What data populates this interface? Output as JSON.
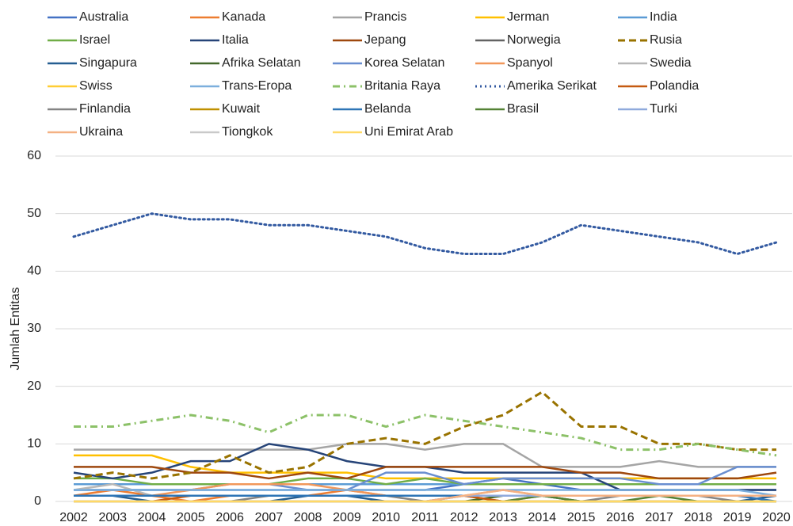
{
  "chart_data": {
    "type": "line",
    "y_label": "Jumlah Entitas",
    "categories": [
      "2002",
      "2003",
      "2004",
      "2005",
      "2006",
      "2007",
      "2008",
      "2009",
      "2010",
      "2011",
      "2012",
      "2013",
      "2014",
      "2015",
      "2016",
      "2017",
      "2018",
      "2019",
      "2020"
    ],
    "ylim": [
      0,
      60
    ],
    "yticks": [
      0,
      10,
      20,
      30,
      40,
      50,
      60
    ],
    "grid": true,
    "series": [
      {
        "name": "Australia",
        "color": "#4472c4",
        "dash": "solid",
        "values": [
          2,
          2,
          2,
          2,
          2,
          2,
          2,
          2,
          2,
          2,
          3,
          4,
          3,
          2,
          2,
          2,
          2,
          2,
          2
        ]
      },
      {
        "name": "Kanada",
        "color": "#ed7d31",
        "dash": "solid",
        "values": [
          1,
          2,
          1,
          0,
          1,
          1,
          1,
          2,
          1,
          1,
          1,
          0,
          1,
          1,
          1,
          1,
          1,
          1,
          1
        ]
      },
      {
        "name": "Prancis",
        "color": "#a5a5a5",
        "dash": "solid",
        "values": [
          9,
          9,
          9,
          9,
          9,
          9,
          9,
          10,
          10,
          9,
          10,
          10,
          6,
          6,
          6,
          7,
          6,
          6,
          6
        ]
      },
      {
        "name": "Jerman",
        "color": "#ffc000",
        "dash": "solid",
        "values": [
          8,
          8,
          8,
          6,
          5,
          5,
          5,
          5,
          4,
          4,
          4,
          4,
          4,
          4,
          4,
          4,
          4,
          4,
          4
        ]
      },
      {
        "name": "India",
        "color": "#5b9bd5",
        "dash": "solid",
        "values": [
          3,
          3,
          3,
          3,
          3,
          3,
          3,
          3,
          3,
          3,
          3,
          3,
          3,
          3,
          3,
          3,
          3,
          3,
          3
        ]
      },
      {
        "name": "Israel",
        "color": "#70ad47",
        "dash": "solid",
        "values": [
          4,
          4,
          3,
          3,
          3,
          3,
          4,
          4,
          3,
          4,
          3,
          3,
          3,
          3,
          3,
          3,
          3,
          3,
          3
        ]
      },
      {
        "name": "Italia",
        "color": "#264478",
        "dash": "solid",
        "values": [
          5,
          4,
          5,
          7,
          7,
          10,
          9,
          7,
          6,
          6,
          5,
          5,
          5,
          5,
          2,
          2,
          2,
          2,
          2
        ]
      },
      {
        "name": "Jepang",
        "color": "#9e480e",
        "dash": "solid",
        "values": [
          6,
          6,
          6,
          5,
          5,
          4,
          5,
          4,
          6,
          6,
          6,
          6,
          6,
          5,
          5,
          4,
          4,
          4,
          5
        ]
      },
      {
        "name": "Norwegia",
        "color": "#636363",
        "dash": "solid",
        "values": [
          1,
          1,
          1,
          1,
          1,
          1,
          1,
          1,
          1,
          1,
          1,
          1,
          1,
          1,
          1,
          1,
          1,
          1,
          1
        ]
      },
      {
        "name": "Rusia",
        "color": "#997300",
        "dash": "dashed",
        "values": [
          4,
          5,
          4,
          5,
          8,
          5,
          6,
          10,
          11,
          10,
          13,
          15,
          19,
          13,
          13,
          10,
          10,
          9,
          9
        ]
      },
      {
        "name": "Singapura",
        "color": "#255e91",
        "dash": "solid",
        "values": [
          1,
          1,
          0,
          0,
          0,
          0,
          1,
          1,
          0,
          0,
          0,
          0,
          0,
          0,
          0,
          0,
          0,
          0,
          1
        ]
      },
      {
        "name": "Afrika Selatan",
        "color": "#43682b",
        "dash": "solid",
        "values": [
          0,
          0,
          0,
          0,
          0,
          0,
          0,
          0,
          0,
          0,
          0,
          1,
          1,
          0,
          0,
          0,
          0,
          0,
          0
        ]
      },
      {
        "name": "Korea Selatan",
        "color": "#698ed0",
        "dash": "solid",
        "values": [
          2,
          2,
          2,
          2,
          3,
          3,
          2,
          2,
          5,
          5,
          3,
          4,
          4,
          4,
          4,
          3,
          3,
          6,
          6
        ]
      },
      {
        "name": "Spanyol",
        "color": "#f1975a",
        "dash": "solid",
        "values": [
          1,
          1,
          1,
          2,
          3,
          3,
          3,
          2,
          1,
          1,
          1,
          2,
          1,
          1,
          1,
          1,
          1,
          1,
          1
        ]
      },
      {
        "name": "Swedia",
        "color": "#b7b7b7",
        "dash": "solid",
        "values": [
          2,
          3,
          1,
          1,
          1,
          1,
          1,
          1,
          1,
          1,
          1,
          1,
          1,
          1,
          1,
          1,
          1,
          1,
          1
        ]
      },
      {
        "name": "Swiss",
        "color": "#ffcd33",
        "dash": "solid",
        "values": [
          0,
          0,
          0,
          0,
          0,
          0,
          0,
          0,
          0,
          0,
          0,
          0,
          0,
          0,
          0,
          0,
          0,
          0,
          0
        ]
      },
      {
        "name": "Trans-Eropa",
        "color": "#7cafdd",
        "dash": "solid",
        "values": [
          2,
          2,
          2,
          2,
          2,
          2,
          2,
          2,
          2,
          2,
          2,
          2,
          2,
          2,
          2,
          2,
          2,
          2,
          1
        ]
      },
      {
        "name": "Britania Raya",
        "color": "#8cc168",
        "dash": "dashdot",
        "values": [
          13,
          13,
          14,
          15,
          14,
          12,
          15,
          15,
          13,
          15,
          14,
          13,
          12,
          11,
          9,
          9,
          10,
          9,
          8
        ]
      },
      {
        "name": "Amerika Serikat",
        "color": "#335aa1",
        "dash": "dotted",
        "values": [
          46,
          48,
          50,
          49,
          49,
          48,
          48,
          47,
          46,
          44,
          43,
          43,
          45,
          48,
          47,
          46,
          45,
          43,
          45
        ]
      },
      {
        "name": "Polandia",
        "color": "#c55a11",
        "dash": "solid",
        "values": [
          0,
          0,
          0,
          1,
          1,
          1,
          1,
          1,
          1,
          1,
          1,
          0,
          0,
          0,
          0,
          0,
          0,
          0,
          0
        ]
      },
      {
        "name": "Finlandia",
        "color": "#848484",
        "dash": "solid",
        "values": [
          0,
          0,
          0,
          0,
          0,
          1,
          1,
          1,
          1,
          0,
          1,
          1,
          1,
          0,
          1,
          1,
          1,
          0,
          0
        ]
      },
      {
        "name": "Kuwait",
        "color": "#bf9000",
        "dash": "solid",
        "values": [
          0,
          0,
          0,
          0,
          0,
          0,
          0,
          0,
          0,
          0,
          0,
          0,
          0,
          0,
          0,
          0,
          0,
          0,
          0
        ]
      },
      {
        "name": "Belanda",
        "color": "#2e75b6",
        "dash": "solid",
        "values": [
          1,
          1,
          1,
          1,
          1,
          1,
          1,
          1,
          1,
          1,
          1,
          1,
          1,
          1,
          1,
          1,
          1,
          1,
          0
        ]
      },
      {
        "name": "Brasil",
        "color": "#548235",
        "dash": "solid",
        "values": [
          0,
          0,
          0,
          0,
          0,
          0,
          0,
          0,
          0,
          0,
          0,
          0,
          1,
          0,
          0,
          1,
          0,
          0,
          0
        ]
      },
      {
        "name": "Turki",
        "color": "#8faadc",
        "dash": "solid",
        "values": [
          0,
          0,
          0,
          0,
          0,
          0,
          0,
          0,
          0,
          0,
          1,
          1,
          1,
          1,
          1,
          1,
          1,
          1,
          1
        ]
      },
      {
        "name": "Ukraina",
        "color": "#f4b183",
        "dash": "solid",
        "values": [
          0,
          0,
          0,
          0,
          0,
          0,
          0,
          0,
          0,
          0,
          1,
          2,
          1,
          1,
          1,
          1,
          1,
          1,
          1
        ]
      },
      {
        "name": "Tiongkok",
        "color": "#c9c9c9",
        "dash": "solid",
        "values": [
          0,
          0,
          0,
          0,
          0,
          0,
          0,
          0,
          0,
          0,
          0,
          0,
          0,
          0,
          0,
          0,
          0,
          0,
          0
        ]
      },
      {
        "name": "Uni Emirat Arab",
        "color": "#ffd966",
        "dash": "solid",
        "values": [
          0,
          0,
          0,
          0,
          0,
          0,
          0,
          0,
          0,
          0,
          0,
          0,
          0,
          0,
          0,
          0,
          0,
          0,
          0
        ]
      }
    ]
  }
}
